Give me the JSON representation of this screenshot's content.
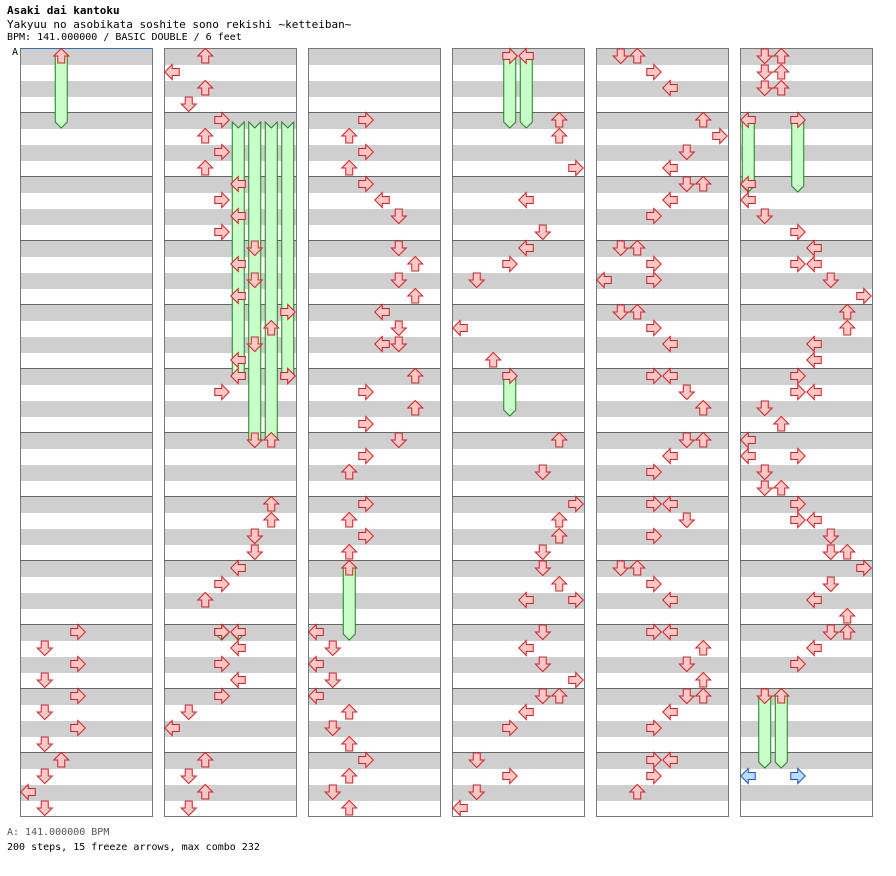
{
  "header": {
    "artist": "Asaki dai kantoku",
    "title": "Yakyuu no asobikata soshite sono rekishi ~ketteiban~",
    "info": "BPM: 141.000000 / BASIC DOUBLE / 6 feet"
  },
  "marker_label": "A",
  "footer": {
    "bpm_line": "A: 141.000000 BPM",
    "stats_line": "200 steps, 15 freeze arrows, max combo 232"
  },
  "chart_layout": {
    "columns": 6,
    "measures_per_column": 12,
    "lanes": 8,
    "lane_directions": [
      "left",
      "down",
      "up",
      "right",
      "left",
      "down",
      "up",
      "right"
    ]
  },
  "colors": {
    "arrow_fill": "#ffc8c8",
    "arrow_stroke": "#d02020",
    "freeze_fill": "#c8ffc8",
    "freeze_stroke": "#208020",
    "final_arrow_fill": "#bcdcff",
    "final_arrow_stroke": "#2050c0",
    "stripe": "#cfcfcf"
  },
  "icons": {
    "arrow": "step-arrow-icon",
    "freeze": "freeze-arrow-icon"
  },
  "notes": [
    [
      0,
      9,
      0,
      4,
      3
    ],
    [
      0,
      9,
      1,
      4,
      1
    ],
    [
      0,
      9,
      2,
      4,
      3
    ],
    [
      0,
      9,
      3,
      4,
      1
    ],
    [
      0,
      10,
      0,
      4,
      3
    ],
    [
      0,
      10,
      1,
      4,
      1
    ],
    [
      0,
      10,
      2,
      4,
      3
    ],
    [
      0,
      10,
      3,
      4,
      1
    ],
    [
      0,
      11,
      0,
      4,
      2
    ],
    [
      0,
      11,
      1,
      4,
      1
    ],
    [
      0,
      11,
      2,
      4,
      0
    ],
    [
      0,
      11,
      3,
      4,
      1
    ],
    [
      1,
      0,
      0,
      4,
      2
    ],
    [
      1,
      0,
      1,
      4,
      0
    ],
    [
      1,
      0,
      2,
      4,
      2
    ],
    [
      1,
      0,
      3,
      4,
      1
    ],
    [
      1,
      1,
      0,
      4,
      3
    ],
    [
      1,
      1,
      1,
      4,
      2
    ],
    [
      1,
      1,
      2,
      4,
      3
    ],
    [
      1,
      1,
      3,
      4,
      2
    ],
    [
      1,
      2,
      0,
      4,
      4
    ],
    [
      1,
      2,
      1,
      4,
      3
    ],
    [
      1,
      2,
      2,
      4,
      4
    ],
    [
      1,
      2,
      3,
      4,
      3
    ],
    [
      1,
      3,
      0,
      4,
      5
    ],
    [
      1,
      3,
      1,
      4,
      4
    ],
    [
      1,
      3,
      2,
      4,
      5
    ],
    [
      1,
      3,
      3,
      4,
      4
    ],
    [
      1,
      4,
      0,
      4,
      7
    ],
    [
      1,
      4,
      1,
      4,
      6
    ],
    [
      1,
      4,
      2,
      4,
      5
    ],
    [
      1,
      4,
      3,
      4,
      4
    ],
    [
      1,
      5,
      0,
      4,
      7
    ],
    [
      1,
      5,
      1,
      4,
      3
    ],
    [
      1,
      7,
      0,
      4,
      6
    ],
    [
      1,
      7,
      1,
      4,
      6
    ],
    [
      1,
      7,
      2,
      4,
      5
    ],
    [
      1,
      7,
      3,
      4,
      5
    ],
    [
      1,
      8,
      0,
      4,
      4
    ],
    [
      1,
      8,
      1,
      4,
      3
    ],
    [
      1,
      8,
      2,
      4,
      2
    ],
    [
      1,
      9,
      0,
      4,
      3
    ],
    [
      1,
      9,
      1,
      4,
      4
    ],
    [
      1,
      9,
      2,
      4,
      3
    ],
    [
      1,
      9,
      3,
      4,
      4
    ],
    [
      1,
      10,
      0,
      4,
      3
    ],
    [
      1,
      10,
      1,
      4,
      1
    ],
    [
      1,
      10,
      2,
      4,
      0
    ],
    [
      1,
      11,
      0,
      4,
      2
    ],
    [
      1,
      11,
      1,
      4,
      1
    ],
    [
      1,
      11,
      2,
      4,
      2
    ],
    [
      1,
      11,
      3,
      4,
      1
    ],
    [
      2,
      1,
      0,
      4,
      3
    ],
    [
      2,
      1,
      1,
      4,
      2
    ],
    [
      2,
      1,
      2,
      4,
      3
    ],
    [
      2,
      1,
      3,
      4,
      2
    ],
    [
      2,
      2,
      0,
      4,
      3
    ],
    [
      2,
      2,
      1,
      4,
      4
    ],
    [
      2,
      2,
      2,
      4,
      5
    ],
    [
      2,
      3,
      0,
      4,
      5
    ],
    [
      2,
      3,
      1,
      4,
      6
    ],
    [
      2,
      3,
      2,
      4,
      5
    ],
    [
      2,
      3,
      3,
      4,
      6
    ],
    [
      2,
      4,
      0,
      4,
      4
    ],
    [
      2,
      4,
      1,
      4,
      5
    ],
    [
      2,
      4,
      2,
      4,
      4
    ],
    [
      2,
      4,
      2,
      4,
      5
    ],
    [
      2,
      5,
      0,
      4,
      6
    ],
    [
      2,
      5,
      1,
      4,
      3
    ],
    [
      2,
      5,
      2,
      4,
      6
    ],
    [
      2,
      5,
      3,
      4,
      3
    ],
    [
      2,
      6,
      0,
      4,
      5
    ],
    [
      2,
      6,
      1,
      4,
      3
    ],
    [
      2,
      6,
      2,
      4,
      2
    ],
    [
      2,
      7,
      0,
      4,
      3
    ],
    [
      2,
      7,
      1,
      4,
      2
    ],
    [
      2,
      7,
      2,
      4,
      3
    ],
    [
      2,
      7,
      3,
      4,
      2
    ],
    [
      2,
      9,
      0,
      4,
      0
    ],
    [
      2,
      9,
      1,
      4,
      1
    ],
    [
      2,
      9,
      2,
      4,
      0
    ],
    [
      2,
      9,
      3,
      4,
      1
    ],
    [
      2,
      10,
      0,
      4,
      0
    ],
    [
      2,
      10,
      1,
      4,
      2
    ],
    [
      2,
      10,
      2,
      4,
      1
    ],
    [
      2,
      10,
      3,
      4,
      2
    ],
    [
      2,
      11,
      0,
      4,
      3
    ],
    [
      2,
      11,
      1,
      4,
      2
    ],
    [
      2,
      11,
      2,
      4,
      1
    ],
    [
      2,
      11,
      3,
      4,
      2
    ],
    [
      3,
      1,
      0,
      4,
      6
    ],
    [
      3,
      1,
      1,
      4,
      6
    ],
    [
      3,
      1,
      3,
      4,
      7
    ],
    [
      3,
      2,
      1,
      4,
      4
    ],
    [
      3,
      2,
      3,
      4,
      5
    ],
    [
      3,
      3,
      0,
      4,
      4
    ],
    [
      3,
      3,
      1,
      4,
      3
    ],
    [
      3,
      3,
      2,
      4,
      1
    ],
    [
      3,
      4,
      1,
      4,
      0
    ],
    [
      3,
      4,
      3,
      4,
      2
    ],
    [
      3,
      6,
      0,
      4,
      6
    ],
    [
      3,
      6,
      2,
      4,
      5
    ],
    [
      3,
      7,
      0,
      4,
      7
    ],
    [
      3,
      7,
      1,
      4,
      6
    ],
    [
      3,
      7,
      2,
      4,
      6
    ],
    [
      3,
      7,
      3,
      4,
      5
    ],
    [
      3,
      8,
      0,
      4,
      5
    ],
    [
      3,
      8,
      1,
      4,
      6
    ],
    [
      3,
      8,
      2,
      4,
      4
    ],
    [
      3,
      8,
      2,
      4,
      7
    ],
    [
      3,
      9,
      0,
      4,
      5
    ],
    [
      3,
      9,
      1,
      4,
      4
    ],
    [
      3,
      9,
      2,
      4,
      5
    ],
    [
      3,
      9,
      3,
      4,
      7
    ],
    [
      3,
      10,
      0,
      4,
      5
    ],
    [
      3,
      10,
      0,
      4,
      6
    ],
    [
      3,
      10,
      1,
      4,
      4
    ],
    [
      3,
      10,
      2,
      4,
      3
    ],
    [
      3,
      11,
      0,
      4,
      1
    ],
    [
      3,
      11,
      1,
      4,
      3
    ],
    [
      3,
      11,
      2,
      4,
      1
    ],
    [
      3,
      11,
      3,
      4,
      0
    ],
    [
      4,
      0,
      0,
      4,
      1
    ],
    [
      4,
      0,
      0,
      4,
      2
    ],
    [
      4,
      0,
      1,
      4,
      3
    ],
    [
      4,
      0,
      2,
      4,
      4
    ],
    [
      4,
      1,
      0,
      4,
      6
    ],
    [
      4,
      1,
      1,
      4,
      7
    ],
    [
      4,
      1,
      2,
      4,
      5
    ],
    [
      4,
      1,
      3,
      4,
      4
    ],
    [
      4,
      2,
      0,
      4,
      5
    ],
    [
      4,
      2,
      0,
      4,
      6
    ],
    [
      4,
      2,
      1,
      4,
      4
    ],
    [
      4,
      2,
      2,
      4,
      3
    ],
    [
      4,
      3,
      0,
      4,
      1
    ],
    [
      4,
      3,
      0,
      4,
      2
    ],
    [
      4,
      3,
      1,
      4,
      3
    ],
    [
      4,
      3,
      2,
      4,
      0
    ],
    [
      4,
      3,
      2,
      4,
      3
    ],
    [
      4,
      4,
      0,
      4,
      1
    ],
    [
      4,
      4,
      0,
      4,
      2
    ],
    [
      4,
      4,
      1,
      4,
      3
    ],
    [
      4,
      4,
      2,
      4,
      4
    ],
    [
      4,
      5,
      0,
      4,
      3
    ],
    [
      4,
      5,
      0,
      4,
      4
    ],
    [
      4,
      5,
      1,
      4,
      5
    ],
    [
      4,
      5,
      2,
      4,
      6
    ],
    [
      4,
      6,
      0,
      4,
      5
    ],
    [
      4,
      6,
      0,
      4,
      6
    ],
    [
      4,
      6,
      1,
      4,
      4
    ],
    [
      4,
      6,
      2,
      4,
      3
    ],
    [
      4,
      7,
      0,
      4,
      3
    ],
    [
      4,
      7,
      0,
      4,
      4
    ],
    [
      4,
      7,
      1,
      4,
      5
    ],
    [
      4,
      7,
      2,
      4,
      3
    ],
    [
      4,
      8,
      0,
      4,
      1
    ],
    [
      4,
      8,
      0,
      4,
      2
    ],
    [
      4,
      8,
      1,
      4,
      3
    ],
    [
      4,
      8,
      2,
      4,
      4
    ],
    [
      4,
      9,
      0,
      4,
      3
    ],
    [
      4,
      9,
      0,
      4,
      4
    ],
    [
      4,
      9,
      1,
      4,
      6
    ],
    [
      4,
      9,
      2,
      4,
      5
    ],
    [
      4,
      9,
      3,
      4,
      6
    ],
    [
      4,
      10,
      0,
      4,
      5
    ],
    [
      4,
      10,
      0,
      4,
      6
    ],
    [
      4,
      10,
      1,
      4,
      4
    ],
    [
      4,
      10,
      2,
      4,
      3
    ],
    [
      4,
      11,
      0,
      4,
      3
    ],
    [
      4,
      11,
      0,
      4,
      4
    ],
    [
      4,
      11,
      1,
      4,
      3
    ],
    [
      4,
      11,
      2,
      4,
      2
    ],
    [
      5,
      0,
      0,
      4,
      1
    ],
    [
      5,
      0,
      0,
      4,
      2
    ],
    [
      5,
      0,
      1,
      4,
      1
    ],
    [
      5,
      0,
      1,
      4,
      2
    ],
    [
      5,
      0,
      2,
      4,
      1
    ],
    [
      5,
      0,
      2,
      4,
      2
    ],
    [
      5,
      2,
      0,
      4,
      0
    ],
    [
      5,
      2,
      1,
      4,
      0
    ],
    [
      5,
      2,
      2,
      4,
      1
    ],
    [
      5,
      2,
      3,
      4,
      3
    ],
    [
      5,
      3,
      0,
      4,
      4
    ],
    [
      5,
      3,
      1,
      4,
      3
    ],
    [
      5,
      3,
      1,
      4,
      4
    ],
    [
      5,
      3,
      2,
      4,
      5
    ],
    [
      5,
      3,
      3,
      4,
      7
    ],
    [
      5,
      4,
      0,
      4,
      6
    ],
    [
      5,
      4,
      1,
      4,
      6
    ],
    [
      5,
      4,
      2,
      4,
      4
    ],
    [
      5,
      4,
      3,
      4,
      4
    ],
    [
      5,
      5,
      0,
      4,
      3
    ],
    [
      5,
      5,
      1,
      4,
      3
    ],
    [
      5,
      5,
      1,
      4,
      4
    ],
    [
      5,
      5,
      2,
      4,
      1
    ],
    [
      5,
      5,
      3,
      4,
      2
    ],
    [
      5,
      6,
      0,
      4,
      0
    ],
    [
      5,
      6,
      1,
      4,
      0
    ],
    [
      5,
      6,
      1,
      4,
      3
    ],
    [
      5,
      6,
      2,
      4,
      1
    ],
    [
      5,
      6,
      3,
      4,
      1
    ],
    [
      5,
      6,
      3,
      4,
      2
    ],
    [
      5,
      7,
      0,
      4,
      3
    ],
    [
      5,
      7,
      1,
      4,
      3
    ],
    [
      5,
      7,
      1,
      4,
      4
    ],
    [
      5,
      7,
      2,
      4,
      5
    ],
    [
      5,
      7,
      3,
      4,
      5
    ],
    [
      5,
      7,
      3,
      4,
      6
    ],
    [
      5,
      8,
      0,
      4,
      7
    ],
    [
      5,
      8,
      1,
      4,
      5
    ],
    [
      5,
      8,
      2,
      4,
      4
    ],
    [
      5,
      8,
      3,
      4,
      6
    ],
    [
      5,
      9,
      0,
      4,
      5
    ],
    [
      5,
      9,
      0,
      4,
      6
    ],
    [
      5,
      9,
      1,
      4,
      4
    ],
    [
      5,
      9,
      2,
      4,
      3
    ]
  ],
  "freezes": [
    [
      0,
      0,
      0,
      4,
      2,
      1,
      0,
      4
    ],
    [
      1,
      5,
      0,
      4,
      4,
      1,
      0,
      4
    ],
    [
      1,
      5,
      0,
      4,
      7,
      1,
      0,
      4
    ],
    [
      1,
      6,
      0,
      4,
      5,
      1,
      0,
      4
    ],
    [
      1,
      6,
      0,
      4,
      6,
      1,
      0,
      4
    ],
    [
      1,
      9,
      0,
      4,
      3,
      9,
      0,
      4
    ],
    [
      1,
      9,
      0,
      4,
      4,
      9,
      0,
      4
    ],
    [
      2,
      8,
      0,
      4,
      2,
      9,
      0,
      4
    ],
    [
      3,
      0,
      0,
      4,
      3,
      1,
      0,
      4
    ],
    [
      3,
      0,
      0,
      4,
      4,
      1,
      0,
      4
    ],
    [
      3,
      5,
      0,
      4,
      3,
      5,
      2,
      4
    ],
    [
      5,
      1,
      0,
      4,
      0,
      2,
      0,
      4
    ],
    [
      5,
      1,
      0,
      4,
      3,
      2,
      0,
      4
    ],
    [
      5,
      10,
      0,
      4,
      1,
      11,
      0,
      4
    ],
    [
      5,
      10,
      0,
      4,
      2,
      11,
      0,
      4
    ]
  ],
  "final_notes": [
    [
      5,
      11,
      1,
      4,
      0
    ],
    [
      5,
      11,
      1,
      4,
      3
    ]
  ]
}
